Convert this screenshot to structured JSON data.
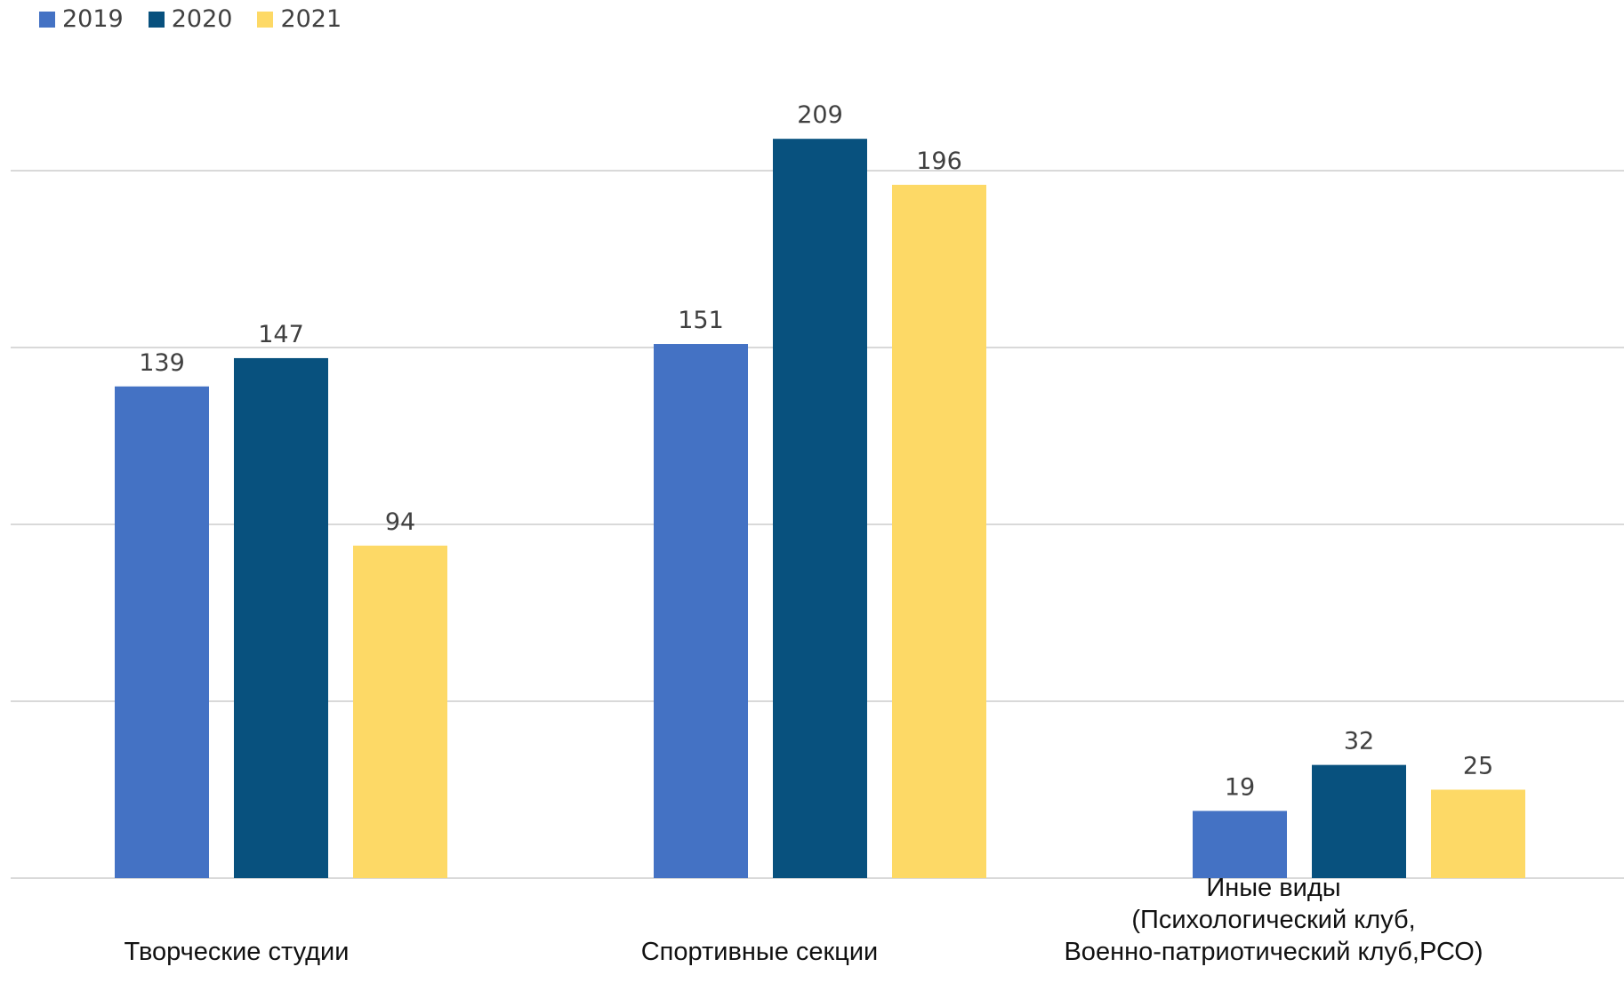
{
  "chart_data": {
    "type": "bar",
    "categories": [
      [
        "Творческие студии"
      ],
      [
        "Спортивные секции"
      ],
      [
        "Иные виды",
        "(Психологический клуб,",
        "Военно-патриотический клуб,РСО)"
      ]
    ],
    "series": [
      {
        "name": "2019",
        "color": "#4472C4",
        "values": [
          139,
          151,
          19
        ]
      },
      {
        "name": "2020",
        "color": "#08517E",
        "values": [
          147,
          209,
          32
        ]
      },
      {
        "name": "2021",
        "color": "#FDD966",
        "values": [
          94,
          196,
          25
        ]
      }
    ],
    "ylim": [
      0,
      250
    ],
    "grid": true,
    "legend": "top-left",
    "data_labels": true
  }
}
